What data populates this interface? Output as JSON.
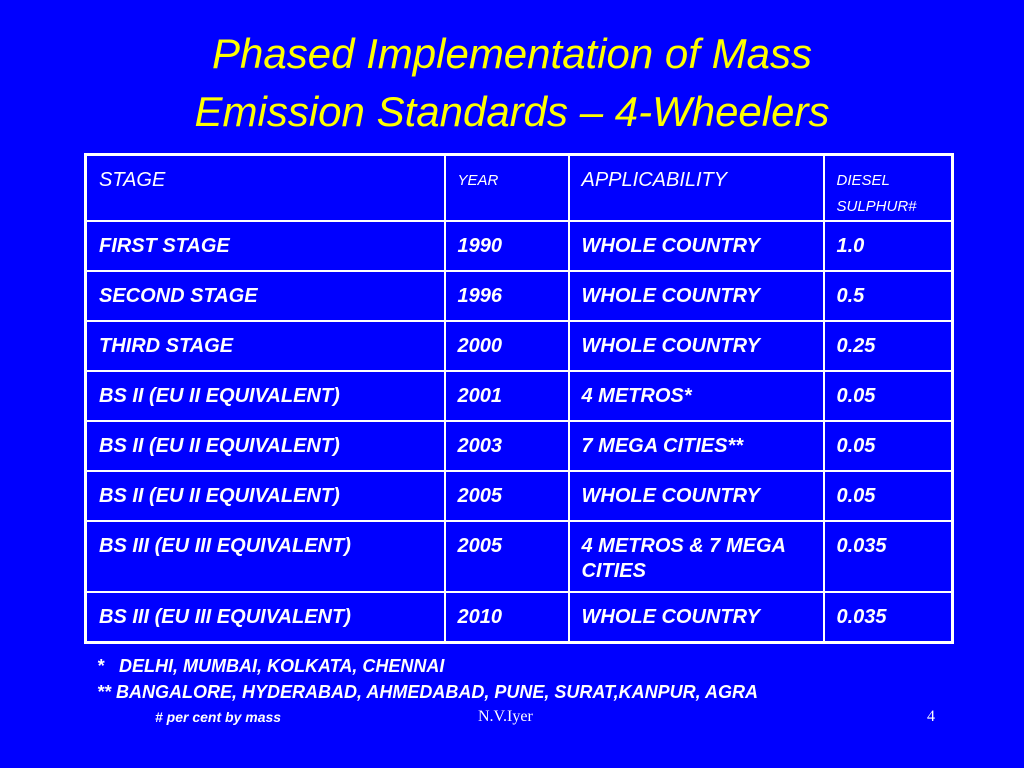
{
  "header": {
    "title_lines": [
      "Phased Implementation of Mass",
      "Emission Standards – 4-Wheelers"
    ]
  },
  "table": {
    "columns": [
      "STAGE",
      "YEAR",
      "APPLICABILITY",
      "DIESEL SULPHUR#"
    ],
    "rows": [
      [
        "FIRST STAGE",
        "1990",
        "WHOLE COUNTRY",
        "1.0"
      ],
      [
        "SECOND STAGE",
        "1996",
        "WHOLE COUNTRY",
        "0.5"
      ],
      [
        "THIRD STAGE",
        "2000",
        "WHOLE COUNTRY",
        "0.25"
      ],
      [
        "BS II  (EU II EQUIVALENT)",
        "2001",
        "4 METROS*",
        "0.05"
      ],
      [
        "BS II  (EU II EQUIVALENT)",
        "2003",
        "7 MEGA CITIES**",
        "0.05"
      ],
      [
        "BS II (EU II EQUIVALENT)",
        "2005",
        "WHOLE COUNTRY",
        "0.05"
      ],
      [
        "BS III (EU III EQUIVALENT)",
        "2005",
        "4 METROS & 7 MEGA CITIES",
        "0.035"
      ],
      [
        "BS III (EU III EQUIVALENT)",
        "2010",
        "WHOLE COUNTRY",
        "0.035"
      ]
    ]
  },
  "footnotes": [
    "*   DELHI, MUMBAI, KOLKATA, CHENNAI",
    "** BANGALORE, HYDERABAD, AHMEDABAD, PUNE, SURAT,KANPUR, AGRA"
  ],
  "footer": {
    "note": "# per cent by mass",
    "author": "N.V.Iyer",
    "page": "4"
  }
}
